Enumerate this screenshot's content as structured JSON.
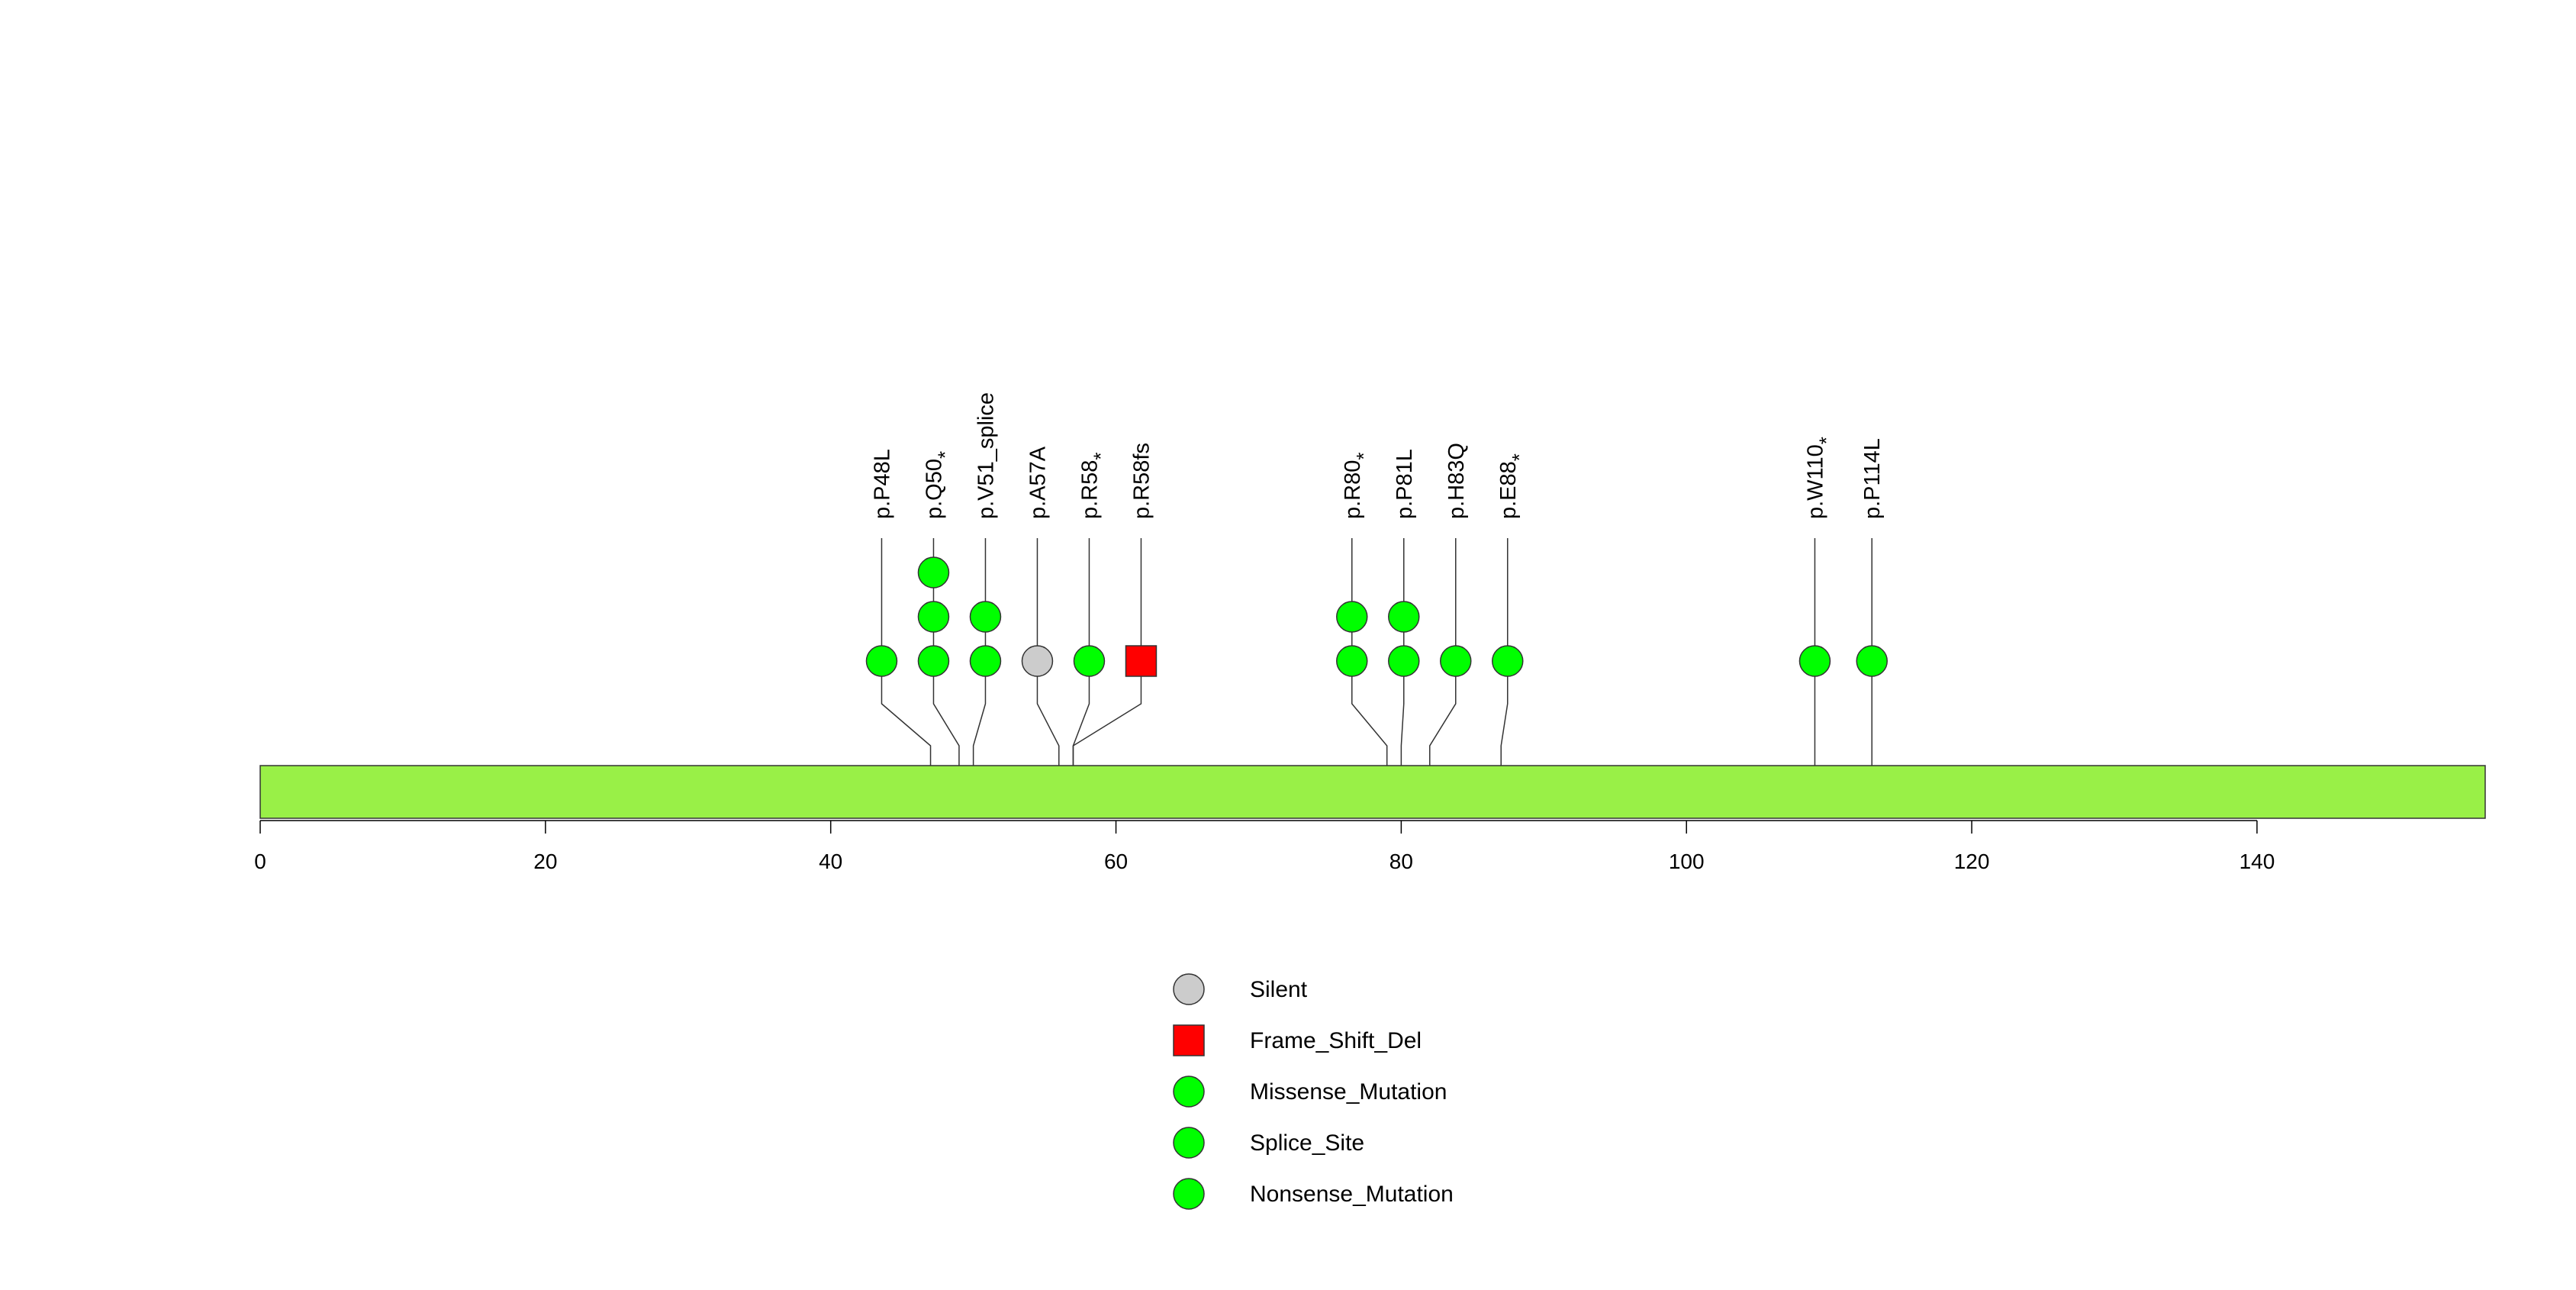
{
  "chart_data": {
    "type": "lollipop",
    "protein_length": 156,
    "xlim": [
      0,
      156
    ],
    "x_ticks": [
      0,
      20,
      40,
      60,
      80,
      100,
      120,
      140
    ],
    "domain_color": "#99f047",
    "mutations": [
      {
        "label": "p.P48L",
        "star": false,
        "position": 47,
        "count": 1,
        "type": "Missense_Mutation"
      },
      {
        "label": "p.Q50",
        "star": true,
        "position": 49,
        "count": 3,
        "type": "Nonsense_Mutation"
      },
      {
        "label": "p.V51_splice",
        "star": false,
        "position": 50,
        "count": 2,
        "type": "Splice_Site"
      },
      {
        "label": "p.A57A",
        "star": false,
        "position": 56,
        "count": 1,
        "type": "Silent"
      },
      {
        "label": "p.R58",
        "star": true,
        "position": 57,
        "count": 1,
        "type": "Nonsense_Mutation"
      },
      {
        "label": "p.R58fs",
        "star": false,
        "position": 57,
        "count": 1,
        "type": "Frame_Shift_Del"
      },
      {
        "label": "p.R80",
        "star": true,
        "position": 79,
        "count": 2,
        "type": "Nonsense_Mutation"
      },
      {
        "label": "p.P81L",
        "star": false,
        "position": 80,
        "count": 2,
        "type": "Missense_Mutation"
      },
      {
        "label": "p.H83Q",
        "star": false,
        "position": 82,
        "count": 1,
        "type": "Missense_Mutation"
      },
      {
        "label": "p.E88",
        "star": true,
        "position": 87,
        "count": 1,
        "type": "Nonsense_Mutation"
      },
      {
        "label": "p.W110",
        "star": true,
        "position": 109,
        "count": 1,
        "type": "Nonsense_Mutation"
      },
      {
        "label": "p.P114L",
        "star": false,
        "position": 113,
        "count": 1,
        "type": "Missense_Mutation"
      }
    ],
    "legend": [
      {
        "label": "Silent",
        "shape": "circle",
        "color": "#cccccc"
      },
      {
        "label": "Frame_Shift_Del",
        "shape": "square",
        "color": "#ff0000"
      },
      {
        "label": "Missense_Mutation",
        "shape": "circle",
        "color": "#00ff00"
      },
      {
        "label": "Splice_Site",
        "shape": "circle",
        "color": "#00ff00"
      },
      {
        "label": "Nonsense_Mutation",
        "shape": "circle",
        "color": "#00ff00"
      }
    ],
    "star_symbol": "*"
  }
}
